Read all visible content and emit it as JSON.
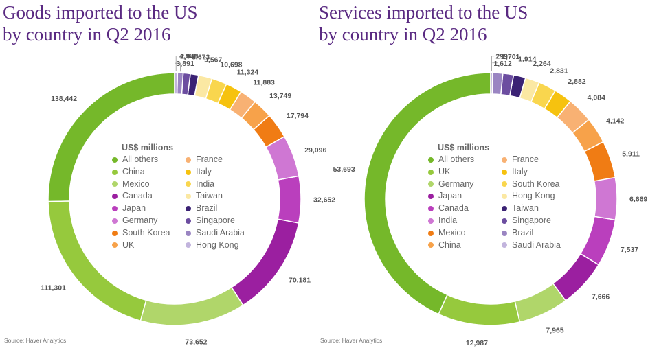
{
  "charts": [
    {
      "id": "goods",
      "title": "Goods imported to the US\nby country in Q2 2016",
      "source": "Source: Haver Analytics",
      "legend_title": "US$ millions",
      "chart_data": {
        "type": "pie",
        "variant": "donut",
        "title": "Goods imported to the US by country in Q2 2016",
        "unit": "US$ millions",
        "categories": [
          "All others",
          "China",
          "Mexico",
          "Canada",
          "Japan",
          "Germany",
          "South Korea",
          "UK",
          "France",
          "Italy",
          "India",
          "Taiwan",
          "Brazil",
          "Singapore",
          "Saudi Arabia",
          "Hong Kong"
        ],
        "values": [
          138442,
          111301,
          73652,
          70181,
          32652,
          29096,
          17794,
          13749,
          11883,
          11324,
          10698,
          9567,
          5673,
          4998,
          3891,
          2048
        ],
        "value_labels": [
          "138,442",
          "111,301",
          "73,652",
          "70,181",
          "32,652",
          "29,096",
          "17,794",
          "13,749",
          "11,883",
          "11,324",
          "10,698",
          "9,567",
          "5,673",
          "4,998",
          "3,891",
          "2,048"
        ],
        "colors": [
          "#75b82a",
          "#96c93d",
          "#b0d66a",
          "#9b1fa0",
          "#ba3fbd",
          "#cf77d3",
          "#f07c14",
          "#f7a24a",
          "#f8b173",
          "#f6c20f",
          "#f9d64e",
          "#fbe8a3",
          "#3b2274",
          "#6c4da0",
          "#9a85c2",
          "#c2b4dd"
        ]
      }
    },
    {
      "id": "services",
      "title": "Services imported to the US\nby country in Q2 2016",
      "source": "Source: Haver Analytics",
      "legend_title": "US$ millions",
      "chart_data": {
        "type": "pie",
        "variant": "donut",
        "title": "Services imported to the US by country in Q2 2016",
        "unit": "US$ millions",
        "categories": [
          "All others",
          "UK",
          "Germany",
          "Japan",
          "Canada",
          "India",
          "Mexico",
          "China",
          "France",
          "Italy",
          "South Korea",
          "Hong Kong",
          "Taiwan",
          "Singapore",
          "Brazil",
          "Saudi Arabia"
        ],
        "values": [
          53693,
          12987,
          7965,
          7666,
          7537,
          6669,
          5911,
          4142,
          4084,
          2882,
          2831,
          2264,
          1914,
          1701,
          1612,
          299
        ],
        "value_labels": [
          "53,693",
          "12,987",
          "7,965",
          "7,666",
          "7,537",
          "6,669",
          "5,911",
          "4,142",
          "4,084",
          "2,882",
          "2,831",
          "2,264",
          "1,914",
          "1,701",
          "1,612",
          "299"
        ],
        "colors": [
          "#75b82a",
          "#96c93d",
          "#b0d66a",
          "#9b1fa0",
          "#ba3fbd",
          "#cf77d3",
          "#f07c14",
          "#f7a24a",
          "#f8b173",
          "#f6c20f",
          "#f9d64e",
          "#fbe8a3",
          "#3b2274",
          "#6c4da0",
          "#9a85c2",
          "#c2b4dd"
        ]
      }
    }
  ]
}
